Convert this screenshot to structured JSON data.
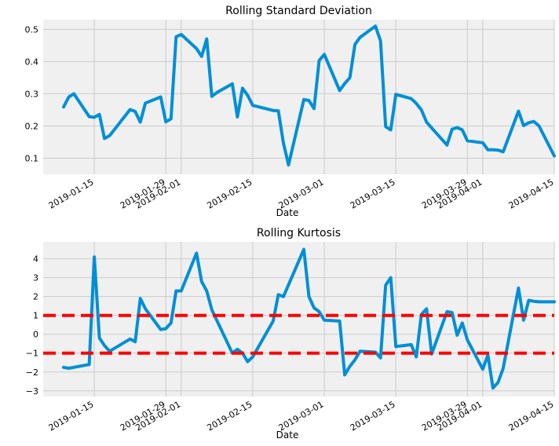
{
  "chart_data": [
    {
      "type": "line",
      "title": "Rolling Standard Deviation",
      "xlabel": "Date",
      "ylabel": "",
      "xlim": [
        "2019-01-05",
        "2019-04-15"
      ],
      "ylim": [
        0.05,
        0.53
      ],
      "yticks": [
        0.1,
        0.2,
        0.3,
        0.4,
        0.5
      ],
      "ytick_labels": [
        "0.1",
        "0.2",
        "0.3",
        "0.4",
        "0.5"
      ],
      "xticks": [
        "2019-01-15",
        "2019-01-29",
        "2019-02-01",
        "2019-02-15",
        "2019-03-01",
        "2019-03-15",
        "2019-03-29",
        "2019-04-01",
        "2019-04-15"
      ],
      "xtick_labels": [
        "2019-01-15",
        "2019-01-29",
        "2019-02-01",
        "2019-02-15",
        "2019-03-01",
        "2019-03-15",
        "2019-03-29",
        "2019-04-01",
        "2019-04-15"
      ],
      "grid": true,
      "color": "#008fd5",
      "series": [
        {
          "x": [
            "2019-01-09",
            "2019-01-10",
            "2019-01-11",
            "2019-01-14",
            "2019-01-15",
            "2019-01-16",
            "2019-01-17",
            "2019-01-18",
            "2019-01-22",
            "2019-01-23",
            "2019-01-24",
            "2019-01-25",
            "2019-01-28",
            "2019-01-29",
            "2019-01-30",
            "2019-01-31",
            "2019-02-01",
            "2019-02-04",
            "2019-02-05",
            "2019-02-06",
            "2019-02-07",
            "2019-02-08",
            "2019-02-11",
            "2019-02-12",
            "2019-02-13",
            "2019-02-14",
            "2019-02-15",
            "2019-02-19",
            "2019-02-20",
            "2019-02-21",
            "2019-02-22",
            "2019-02-25",
            "2019-02-26",
            "2019-02-27",
            "2019-02-28",
            "2019-03-01",
            "2019-03-04",
            "2019-03-05",
            "2019-03-06",
            "2019-03-07",
            "2019-03-08",
            "2019-03-11",
            "2019-03-12",
            "2019-03-13",
            "2019-03-14",
            "2019-03-15",
            "2019-03-18",
            "2019-03-19",
            "2019-03-20",
            "2019-03-21",
            "2019-03-22",
            "2019-03-25",
            "2019-03-26",
            "2019-03-27",
            "2019-03-28",
            "2019-03-29",
            "2019-04-01",
            "2019-04-02",
            "2019-04-03",
            "2019-04-04",
            "2019-04-05",
            "2019-04-08",
            "2019-04-09",
            "2019-04-10",
            "2019-04-11",
            "2019-04-12",
            "2019-04-15"
          ],
          "values": [
            0.259,
            0.29,
            0.3,
            0.229,
            0.227,
            0.236,
            0.161,
            0.17,
            0.251,
            0.245,
            0.212,
            0.271,
            0.29,
            0.213,
            0.222,
            0.477,
            0.484,
            0.44,
            0.416,
            0.47,
            0.292,
            0.304,
            0.331,
            0.228,
            0.317,
            0.295,
            0.264,
            0.248,
            0.247,
            0.147,
            0.079,
            0.282,
            0.279,
            0.254,
            0.403,
            0.422,
            0.31,
            0.332,
            0.35,
            0.453,
            0.475,
            0.51,
            0.464,
            0.198,
            0.188,
            0.298,
            0.285,
            0.27,
            0.25,
            0.212,
            0.194,
            0.141,
            0.19,
            0.195,
            0.188,
            0.154,
            0.148,
            0.126,
            0.126,
            0.125,
            0.12,
            0.246,
            0.201,
            0.21,
            0.214,
            0.2,
            0.107
          ]
        }
      ]
    },
    {
      "type": "line",
      "title": "Rolling Kurtosis",
      "xlabel": "Date",
      "ylabel": "",
      "xlim": [
        "2019-01-05",
        "2019-04-15"
      ],
      "ylim": [
        -3.3,
        4.9
      ],
      "yticks": [
        -3,
        -2,
        -1,
        0,
        1,
        2,
        3,
        4
      ],
      "ytick_labels": [
        "−3",
        "−2",
        "−1",
        "0",
        "1",
        "2",
        "3",
        "4"
      ],
      "xticks": [
        "2019-01-15",
        "2019-01-29",
        "2019-02-01",
        "2019-02-15",
        "2019-03-01",
        "2019-03-15",
        "2019-03-29",
        "2019-04-01",
        "2019-04-15"
      ],
      "xtick_labels": [
        "2019-01-15",
        "2019-01-29",
        "2019-02-01",
        "2019-02-15",
        "2019-03-01",
        "2019-03-15",
        "2019-03-29",
        "2019-04-01",
        "2019-04-15"
      ],
      "grid": true,
      "color": "#008fd5",
      "reference_lines": [
        {
          "y": 1,
          "color": "#ff0000",
          "style": "dashed"
        },
        {
          "y": -1,
          "color": "#ff0000",
          "style": "dashed"
        }
      ],
      "series": [
        {
          "x": [
            "2019-01-09",
            "2019-01-10",
            "2019-01-14",
            "2019-01-15",
            "2019-01-16",
            "2019-01-17",
            "2019-01-18",
            "2019-01-22",
            "2019-01-23",
            "2019-01-24",
            "2019-01-25",
            "2019-01-28",
            "2019-01-29",
            "2019-01-30",
            "2019-01-31",
            "2019-02-01",
            "2019-02-04",
            "2019-02-05",
            "2019-02-06",
            "2019-02-07",
            "2019-02-11",
            "2019-02-12",
            "2019-02-13",
            "2019-02-14",
            "2019-02-15",
            "2019-02-19",
            "2019-02-20",
            "2019-02-21",
            "2019-02-25",
            "2019-02-26",
            "2019-02-27",
            "2019-02-28",
            "2019-03-01",
            "2019-03-04",
            "2019-03-05",
            "2019-03-06",
            "2019-03-07",
            "2019-03-08",
            "2019-03-11",
            "2019-03-12",
            "2019-03-13",
            "2019-03-14",
            "2019-03-15",
            "2019-03-18",
            "2019-03-19",
            "2019-03-20",
            "2019-03-21",
            "2019-03-22",
            "2019-03-25",
            "2019-03-26",
            "2019-03-27",
            "2019-03-28",
            "2019-03-29",
            "2019-04-01",
            "2019-04-02",
            "2019-04-03",
            "2019-04-04",
            "2019-04-05",
            "2019-04-08",
            "2019-04-09",
            "2019-04-10",
            "2019-04-11",
            "2019-04-12",
            "2019-04-15"
          ],
          "values": [
            -1.75,
            -1.8,
            -1.6,
            4.1,
            -0.2,
            -0.6,
            -0.9,
            -0.25,
            -0.4,
            1.9,
            1.35,
            0.25,
            0.3,
            0.6,
            2.3,
            2.3,
            4.3,
            2.8,
            2.3,
            1.3,
            -1.0,
            -0.8,
            -1.0,
            -1.45,
            -1.2,
            0.7,
            2.1,
            2.0,
            4.5,
            2.0,
            1.4,
            1.2,
            0.75,
            0.7,
            -2.15,
            -1.7,
            -1.35,
            -0.9,
            -0.95,
            -1.25,
            2.6,
            3.0,
            -0.65,
            -0.55,
            -1.2,
            1.05,
            1.35,
            -1.05,
            1.2,
            1.15,
            -0.05,
            0.6,
            -0.3,
            -1.85,
            -1.1,
            -2.85,
            -2.55,
            -1.8,
            2.45,
            0.75,
            1.8,
            1.75,
            1.72,
            1.72
          ]
        }
      ]
    }
  ]
}
